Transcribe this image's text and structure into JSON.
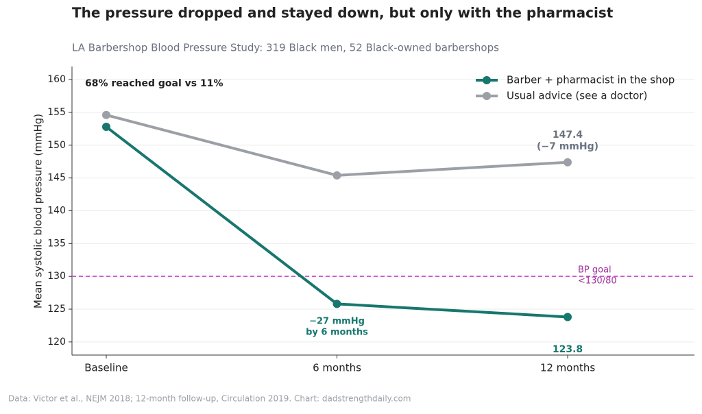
{
  "chart_data": {
    "type": "line",
    "title": "The pressure dropped and stayed down, but only with the pharmacist",
    "subtitle": "LA Barbershop Blood Pressure Study: 319 Black men, 52 Black-owned barbershops",
    "y_label": "Mean systolic blood pressure (mmHg)",
    "categories": [
      "Baseline",
      "6 months",
      "12 months"
    ],
    "series": [
      {
        "name": "Barber + pharmacist in the shop",
        "color": "#17776e",
        "values": [
          152.8,
          125.8,
          123.8
        ]
      },
      {
        "name": "Usual advice (see a doctor)",
        "color": "#9ca0a6",
        "values": [
          154.6,
          145.4,
          147.4
        ]
      }
    ],
    "ylim": [
      118,
      162
    ],
    "yticks": [
      120,
      125,
      130,
      135,
      140,
      145,
      150,
      155,
      160
    ],
    "grid": true,
    "legend": "upper right",
    "reference_line": {
      "value": 130,
      "color": "#c83ccf",
      "label": [
        "BP goal",
        "<130/80"
      ]
    },
    "annotations": [
      {
        "text": "68% reached goal vs 11%"
      },
      {
        "text": "(−7 mmHg)"
      },
      {
        "text": "−27 mmHg"
      },
      {
        "text": "by 6 months"
      }
    ],
    "source": "Data: Victor et al., NEJM 2018; 12-month follow-up, Circulation 2019.  Chart: dadstrengthdaily.com"
  }
}
